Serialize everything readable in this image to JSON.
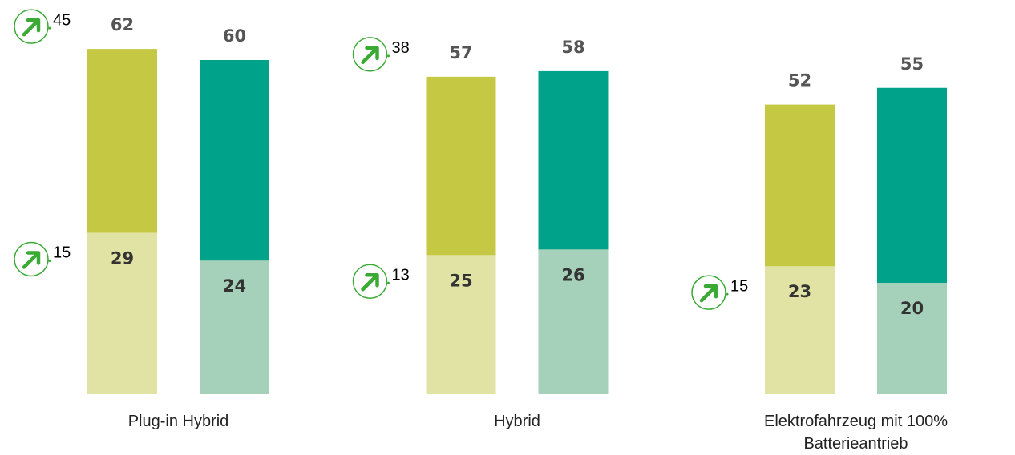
{
  "chart_data": {
    "type": "overlapping-bar",
    "categories": [
      "Plug-in Hybrid",
      "Hybrid",
      "Elektrofahrzeug mit 100% Batterieantrieb"
    ],
    "series": [
      {
        "color": "#c5c842",
        "part_color": "#e1e3a4",
        "values": [
          62,
          57,
          52
        ],
        "part_values": [
          29,
          25,
          23
        ]
      },
      {
        "color": "#00a38a",
        "part_color": "#a5d1bb",
        "values": [
          60,
          58,
          55
        ],
        "part_values": [
          24,
          26,
          20
        ]
      }
    ],
    "trend_total": [
      45,
      38,
      null
    ],
    "trend_part": [
      15,
      13,
      15
    ],
    "trend_color": "#3aaa35",
    "ylim": [
      0,
      70
    ]
  }
}
